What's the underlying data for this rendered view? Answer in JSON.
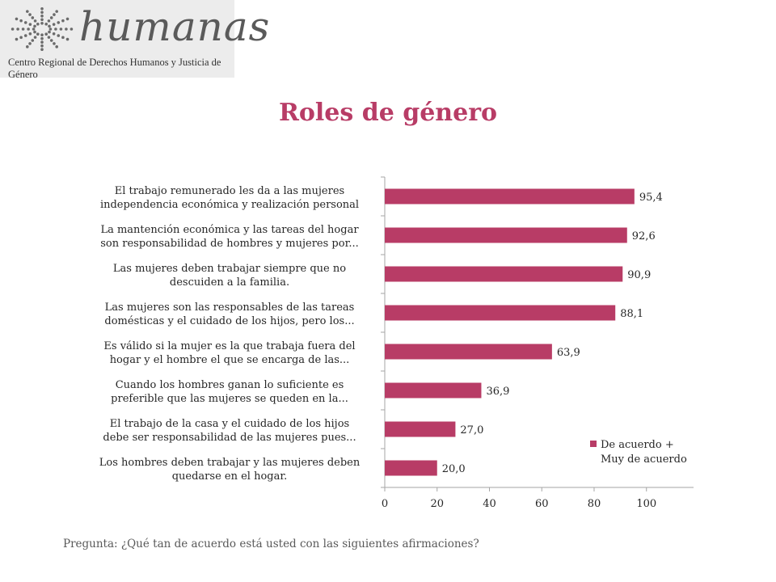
{
  "header": {
    "logo_word": "humanas",
    "logo_subtitle": "Centro Regional de Derechos Humanos y Justicia de Género"
  },
  "title": "Roles de género",
  "question": "Pregunta: ¿Qué tan de acuerdo está usted con las siguientes afirmaciones?",
  "colors": {
    "bar": "#b83c66",
    "title": "#b83c66",
    "axis": "#a6a6a6",
    "text": "#262626"
  },
  "chart_data": {
    "type": "bar",
    "orientation": "horizontal",
    "categories": [
      [
        "El trabajo remunerado les da a las mujeres",
        "independencia económica y realización personal"
      ],
      [
        "La mantención económica y las tareas del hogar",
        "son responsabilidad de hombres y mujeres por..."
      ],
      [
        "Las mujeres deben trabajar siempre que no",
        "descuiden a la familia."
      ],
      [
        "Las mujeres son las responsables de las tareas",
        "domésticas y el cuidado de los hijos, pero los..."
      ],
      [
        "Es válido si la mujer es la que trabaja fuera del",
        "hogar y el hombre el que se encarga de las..."
      ],
      [
        "Cuando los hombres ganan lo suficiente es",
        "preferible que las mujeres se queden en la..."
      ],
      [
        "El trabajo de la casa y el cuidado de los hijos",
        "debe ser responsabilidad de las mujeres pues..."
      ],
      [
        "Los hombres deben trabajar y las mujeres deben",
        "quedarse en el hogar."
      ]
    ],
    "series": [
      {
        "name": [
          "De acuerdo +",
          "Muy de acuerdo"
        ],
        "values": [
          95.4,
          92.6,
          90.9,
          88.1,
          63.9,
          36.9,
          27.0,
          20.0
        ],
        "labels": [
          "95,4",
          "92,6",
          "90,9",
          "88,1",
          "63,9",
          "36,9",
          "27,0",
          "20,0"
        ]
      }
    ],
    "xlim": [
      0,
      118
    ],
    "xticks": [
      0,
      20,
      40,
      60,
      80,
      100
    ],
    "grid": false,
    "legend_position": "bottom-right"
  }
}
